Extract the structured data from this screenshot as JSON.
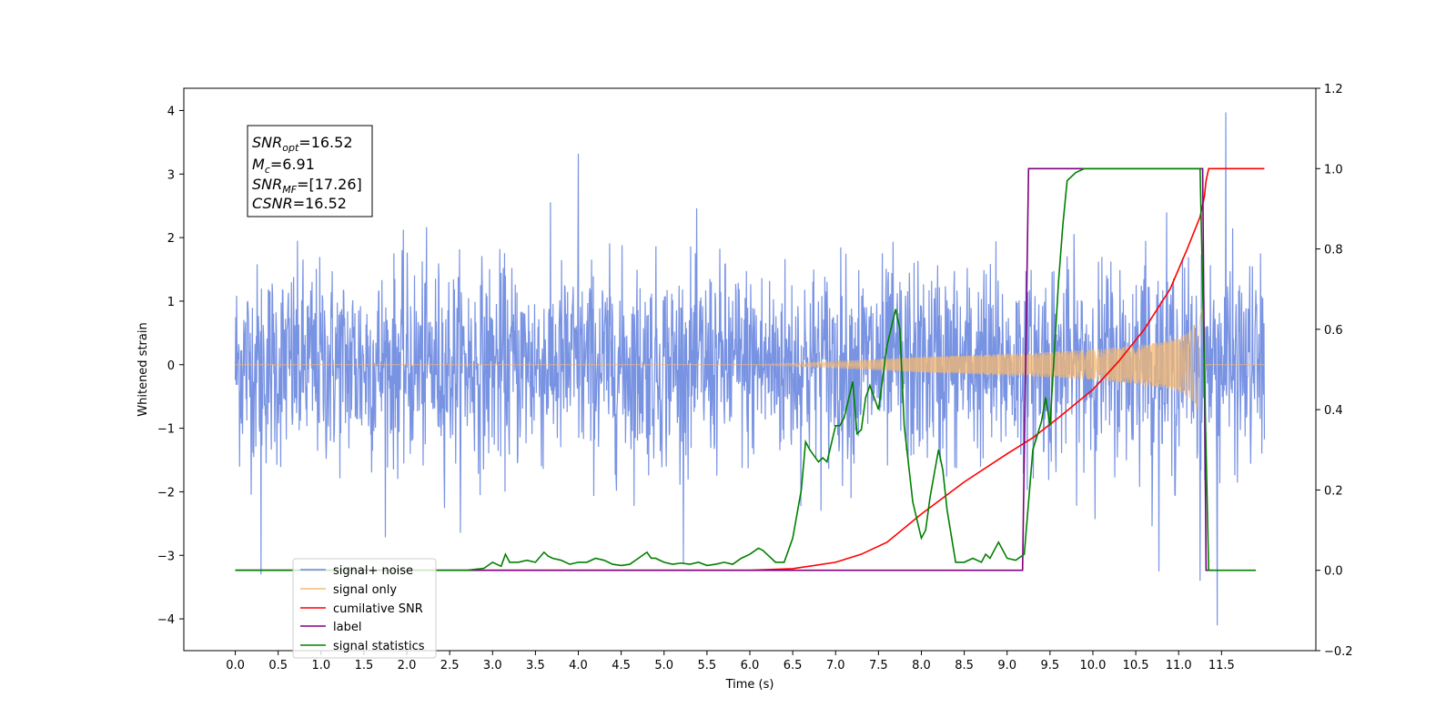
{
  "chart_data": {
    "type": "line",
    "xlabel": "Time (s)",
    "ylabel_left": "Whitened strain",
    "ylabel_right": "",
    "xlim": [
      -0.6,
      12.6
    ],
    "ylim_left": [
      -4.5,
      4.35
    ],
    "ylim_right": [
      -0.2,
      1.2
    ],
    "x_ticks": [
      "0.0",
      "0.5",
      "1.0",
      "1.5",
      "2.0",
      "2.5",
      "3.0",
      "3.5",
      "4.0",
      "4.5",
      "5.0",
      "5.5",
      "6.0",
      "6.5",
      "7.0",
      "7.5",
      "8.0",
      "8.5",
      "9.0",
      "9.5",
      "10.0",
      "10.5",
      "11.0",
      "11.5"
    ],
    "y_ticks_left": [
      "4",
      "3",
      "2",
      "1",
      "0",
      "−1",
      "−2",
      "−3",
      "−4"
    ],
    "y_ticks_right": [
      "1.2",
      "1.0",
      "0.8",
      "0.6",
      "0.4",
      "0.2",
      "0.0",
      "−0.2"
    ],
    "grid": false,
    "legend_position": "lower-left",
    "annotation": {
      "snr_opt": {
        "main": "SNR",
        "sub": "opt",
        "value": "=16.52"
      },
      "mc": {
        "main": "M",
        "sub": "c",
        "value": "=6.91"
      },
      "snr_mf": {
        "main": "SNR",
        "sub": "MF",
        "value": "=[17.26]"
      },
      "csnr": {
        "main": "CSNR",
        "value": "=16.52"
      }
    },
    "series": [
      {
        "name": "signal+ noise",
        "axis": "left",
        "color": "#6a87e0",
        "description_points": {
          "x_range": [
            0.0,
            12.0
          ],
          "envelope_typical": [
            -1.6,
            1.6
          ],
          "extremes": [
            [
              0.3,
              -3.3
            ],
            [
              4.0,
              3.32
            ],
            [
              11.25,
              -3.4
            ],
            [
              11.55,
              3.97
            ],
            [
              11.45,
              -4.1
            ]
          ]
        }
      },
      {
        "name": "signal only",
        "axis": "left",
        "color": "#f5b870",
        "description_points": {
          "x": [
            0.0,
            6.0,
            7.0,
            8.0,
            9.0,
            9.5,
            10.0,
            10.5,
            10.8,
            11.0,
            11.15,
            11.25,
            11.3,
            11.32,
            12.0
          ],
          "amplitude": [
            0.0,
            0.0,
            0.05,
            0.12,
            0.17,
            0.2,
            0.24,
            0.3,
            0.36,
            0.42,
            0.55,
            0.8,
            1.0,
            0.0,
            0.0
          ]
        }
      },
      {
        "name": "cumilative SNR",
        "axis": "right",
        "color": "#ff0000",
        "x": [
          0.0,
          6.0,
          6.5,
          7.0,
          7.3,
          7.6,
          8.0,
          8.5,
          9.0,
          9.3,
          9.6,
          10.0,
          10.3,
          10.6,
          10.9,
          11.1,
          11.25,
          11.3,
          11.32,
          11.35,
          12.0
        ],
        "y": [
          0.0,
          0.0,
          0.004,
          0.02,
          0.04,
          0.07,
          0.14,
          0.22,
          0.29,
          0.33,
          0.38,
          0.45,
          0.52,
          0.6,
          0.7,
          0.8,
          0.88,
          0.93,
          0.97,
          1.0,
          1.0
        ]
      },
      {
        "name": "label",
        "axis": "right",
        "color": "#800080",
        "x": [
          0.0,
          9.18,
          9.25,
          11.28,
          11.32,
          11.4
        ],
        "y": [
          0.0,
          0.0,
          1.0,
          1.0,
          0.0,
          0.0
        ]
      },
      {
        "name": "signal statistics",
        "axis": "right",
        "color": "#008000",
        "x": [
          0.0,
          2.7,
          2.9,
          3.0,
          3.1,
          3.15,
          3.2,
          3.3,
          3.4,
          3.5,
          3.6,
          3.65,
          3.7,
          3.8,
          3.9,
          4.0,
          4.1,
          4.2,
          4.3,
          4.4,
          4.5,
          4.6,
          4.7,
          4.8,
          4.85,
          4.9,
          5.0,
          5.1,
          5.2,
          5.3,
          5.4,
          5.5,
          5.6,
          5.7,
          5.8,
          5.9,
          6.0,
          6.1,
          6.15,
          6.2,
          6.3,
          6.4,
          6.5,
          6.6,
          6.65,
          6.7,
          6.8,
          6.85,
          6.9,
          7.0,
          7.05,
          7.1,
          7.2,
          7.25,
          7.3,
          7.35,
          7.4,
          7.5,
          7.55,
          7.6,
          7.7,
          7.75,
          7.8,
          7.9,
          8.0,
          8.05,
          8.1,
          8.2,
          8.25,
          8.3,
          8.4,
          8.5,
          8.6,
          8.7,
          8.75,
          8.8,
          8.9,
          9.0,
          9.1,
          9.2,
          9.3,
          9.4,
          9.45,
          9.5,
          9.6,
          9.65,
          9.7,
          9.8,
          9.9,
          10.0,
          10.2,
          11.0,
          11.25,
          11.3,
          11.35,
          11.4,
          11.9
        ],
        "y": [
          0.0,
          0.0,
          0.005,
          0.02,
          0.01,
          0.04,
          0.02,
          0.02,
          0.025,
          0.02,
          0.045,
          0.035,
          0.03,
          0.025,
          0.015,
          0.02,
          0.02,
          0.03,
          0.025,
          0.015,
          0.012,
          0.015,
          0.03,
          0.045,
          0.03,
          0.03,
          0.02,
          0.015,
          0.018,
          0.015,
          0.02,
          0.012,
          0.015,
          0.02,
          0.015,
          0.03,
          0.04,
          0.055,
          0.05,
          0.04,
          0.02,
          0.02,
          0.08,
          0.2,
          0.32,
          0.3,
          0.27,
          0.28,
          0.27,
          0.36,
          0.36,
          0.38,
          0.47,
          0.34,
          0.35,
          0.43,
          0.46,
          0.4,
          0.48,
          0.56,
          0.65,
          0.6,
          0.36,
          0.17,
          0.08,
          0.1,
          0.18,
          0.3,
          0.25,
          0.15,
          0.02,
          0.02,
          0.03,
          0.02,
          0.04,
          0.03,
          0.07,
          0.03,
          0.025,
          0.04,
          0.3,
          0.37,
          0.43,
          0.36,
          0.72,
          0.86,
          0.97,
          0.99,
          1.0,
          1.0,
          1.0,
          1.0,
          1.0,
          0.5,
          0.0,
          0.0,
          0.0
        ]
      }
    ]
  }
}
